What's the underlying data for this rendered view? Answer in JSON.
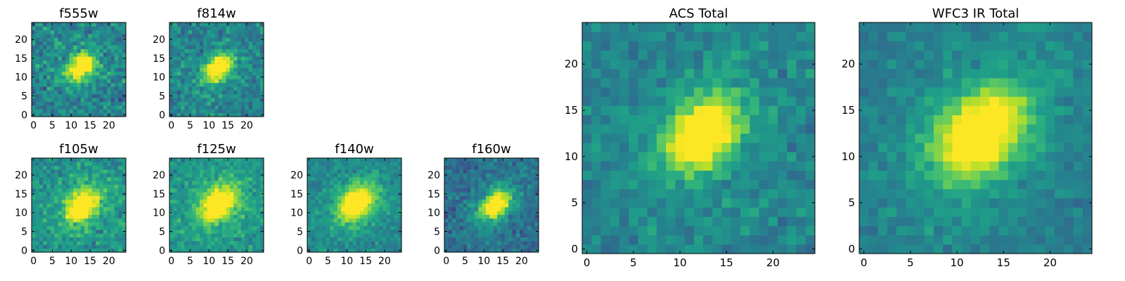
{
  "figure": {
    "colormap": "viridis",
    "colormap_stops": [
      "#440154",
      "#482878",
      "#3e4989",
      "#31688e",
      "#26828e",
      "#1f9e89",
      "#35b779",
      "#6ece58",
      "#b5de2b",
      "#fde725"
    ]
  },
  "chart_data": [
    {
      "type": "heatmap",
      "title": "f555w",
      "xlim": [
        0,
        24
      ],
      "ylim": [
        0,
        24
      ],
      "xticks": [
        "0",
        "5",
        "10",
        "15",
        "20"
      ],
      "yticks": [
        "0",
        "5",
        "10",
        "15",
        "20"
      ],
      "source": {
        "peak": [
          12.5,
          12.5
        ],
        "sigma": [
          2.2,
          3.0
        ],
        "angle_deg": 45,
        "amplitude": 0.75,
        "halo": 0.05
      },
      "noise": 0.2,
      "background": 0.45,
      "seed": 11,
      "grid": false
    },
    {
      "type": "heatmap",
      "title": "f814w",
      "xlim": [
        0,
        24
      ],
      "ylim": [
        0,
        24
      ],
      "xticks": [
        "0",
        "5",
        "10",
        "15",
        "20"
      ],
      "yticks": [
        "0",
        "5",
        "10",
        "15",
        "20"
      ],
      "source": {
        "peak": [
          12.5,
          12.5
        ],
        "sigma": [
          2.0,
          3.0
        ],
        "angle_deg": 45,
        "amplitude": 0.75,
        "halo": 0.05
      },
      "noise": 0.18,
      "background": 0.45,
      "seed": 23,
      "grid": false
    },
    {
      "type": "heatmap",
      "title": "f105w",
      "xlim": [
        0,
        24
      ],
      "ylim": [
        0,
        24
      ],
      "xticks": [
        "0",
        "5",
        "10",
        "15",
        "20"
      ],
      "yticks": [
        "0",
        "5",
        "10",
        "15",
        "20"
      ],
      "source": {
        "peak": [
          13,
          12
        ],
        "sigma": [
          2.4,
          3.4
        ],
        "angle_deg": 45,
        "amplitude": 0.7,
        "halo": 0.1
      },
      "noise": 0.17,
      "background": 0.5,
      "seed": 37,
      "grid": false
    },
    {
      "type": "heatmap",
      "title": "f125w",
      "xlim": [
        0,
        24
      ],
      "ylim": [
        0,
        24
      ],
      "xticks": [
        "0",
        "5",
        "10",
        "15",
        "20"
      ],
      "yticks": [
        "0",
        "5",
        "10",
        "15",
        "20"
      ],
      "source": {
        "peak": [
          12.5,
          12.5
        ],
        "sigma": [
          2.6,
          3.6
        ],
        "angle_deg": 45,
        "amplitude": 0.7,
        "halo": 0.12
      },
      "noise": 0.15,
      "background": 0.5,
      "seed": 41,
      "grid": false
    },
    {
      "type": "heatmap",
      "title": "f140w",
      "xlim": [
        0,
        24
      ],
      "ylim": [
        0,
        24
      ],
      "xticks": [
        "0",
        "5",
        "10",
        "15",
        "20"
      ],
      "yticks": [
        "0",
        "5",
        "10",
        "15",
        "20"
      ],
      "source": {
        "peak": [
          12.5,
          12.5
        ],
        "sigma": [
          2.6,
          3.6
        ],
        "angle_deg": 45,
        "amplitude": 0.75,
        "halo": 0.12
      },
      "noise": 0.12,
      "background": 0.45,
      "seed": 53,
      "grid": false
    },
    {
      "type": "heatmap",
      "title": "f160w",
      "xlim": [
        0,
        24
      ],
      "ylim": [
        0,
        24
      ],
      "xticks": [
        "0",
        "5",
        "10",
        "15",
        "20"
      ],
      "yticks": [
        "0",
        "5",
        "10",
        "15",
        "20"
      ],
      "source": {
        "peak": [
          13,
          12
        ],
        "sigma": [
          2.2,
          3.4
        ],
        "angle_deg": 45,
        "amplitude": 0.75,
        "halo": 0.1
      },
      "noise": 0.15,
      "background": 0.35,
      "seed": 67,
      "grid": false
    },
    {
      "type": "heatmap",
      "title": "ACS Total",
      "xlim": [
        0,
        24
      ],
      "ylim": [
        0,
        24
      ],
      "xticks": [
        "0",
        "5",
        "10",
        "15",
        "20"
      ],
      "yticks": [
        "0",
        "5",
        "10",
        "15",
        "20"
      ],
      "source": {
        "peak": [
          12.5,
          12.5
        ],
        "sigma": [
          2.2,
          3.1
        ],
        "angle_deg": 45,
        "amplitude": 0.8,
        "halo": 0.06
      },
      "noise": 0.13,
      "background": 0.45,
      "seed": 79,
      "grid": false
    },
    {
      "type": "heatmap",
      "title": "WFC3 IR Total",
      "xlim": [
        0,
        24
      ],
      "ylim": [
        0,
        24
      ],
      "xticks": [
        "0",
        "5",
        "10",
        "15",
        "20"
      ],
      "yticks": [
        "0",
        "5",
        "10",
        "15",
        "20"
      ],
      "source": {
        "peak": [
          12.5,
          12.5
        ],
        "sigma": [
          2.6,
          3.8
        ],
        "angle_deg": 45,
        "amplitude": 0.75,
        "halo": 0.15
      },
      "noise": 0.1,
      "background": 0.4,
      "seed": 97,
      "grid": false
    }
  ]
}
